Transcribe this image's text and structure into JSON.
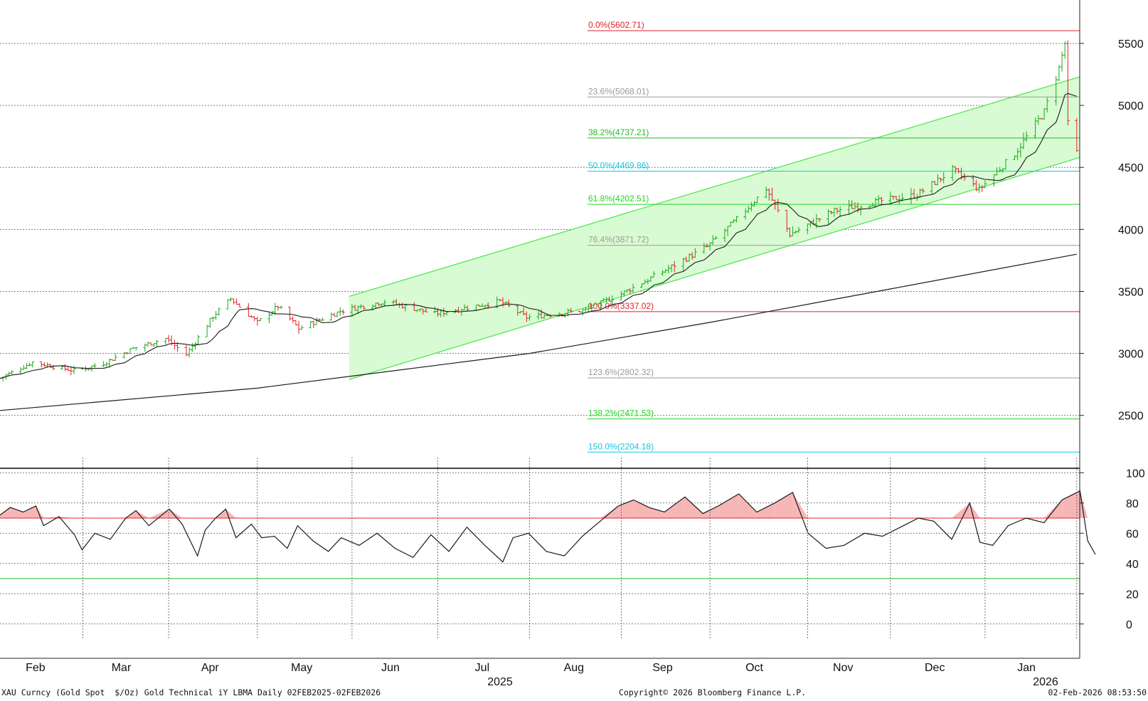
{
  "chart_data": [
    {
      "type": "candlestick",
      "title": "",
      "ylim": [
        2200,
        5850
      ],
      "yticks": [
        2500,
        3000,
        3500,
        4000,
        4500,
        5000,
        5500
      ],
      "grid": true,
      "x_months": [
        "Feb",
        "Mar",
        "Apr",
        "May",
        "Jun",
        "Jul",
        "Aug",
        "Sep",
        "Oct",
        "Nov",
        "Dec",
        "Jan"
      ],
      "x_years": [
        "2025",
        "2026"
      ],
      "price_path": [
        [
          "2025-02-03",
          2800
        ],
        [
          "2025-02-14",
          2930
        ],
        [
          "2025-02-28",
          2860
        ],
        [
          "2025-03-10",
          2920
        ],
        [
          "2025-03-20",
          3040
        ],
        [
          "2025-03-31",
          3120
        ],
        [
          "2025-04-07",
          2990
        ],
        [
          "2025-04-16",
          3300
        ],
        [
          "2025-04-22",
          3440
        ],
        [
          "2025-05-01",
          3250
        ],
        [
          "2025-05-08",
          3380
        ],
        [
          "2025-05-15",
          3200
        ],
        [
          "2025-05-29",
          3340
        ],
        [
          "2025-06-13",
          3420
        ],
        [
          "2025-06-30",
          3320
        ],
        [
          "2025-07-22",
          3420
        ],
        [
          "2025-07-31",
          3290
        ],
        [
          "2025-08-20",
          3350
        ],
        [
          "2025-09-01",
          3480
        ],
        [
          "2025-09-15",
          3660
        ],
        [
          "2025-09-30",
          3860
        ],
        [
          "2025-10-10",
          4080
        ],
        [
          "2025-10-20",
          4330
        ],
        [
          "2025-10-28",
          3960
        ],
        [
          "2025-11-12",
          4150
        ],
        [
          "2025-11-28",
          4230
        ],
        [
          "2025-12-10",
          4280
        ],
        [
          "2025-12-22",
          4480
        ],
        [
          "2025-12-31",
          4320
        ],
        [
          "2026-01-12",
          4610
        ],
        [
          "2026-01-22",
          4950
        ],
        [
          "2026-01-27",
          5300
        ],
        [
          "2026-01-29",
          5500
        ],
        [
          "2026-01-30",
          4850
        ],
        [
          "2026-02-02",
          4620
        ]
      ],
      "moving_average_long_path": [
        [
          "2025-02-03",
          2540
        ],
        [
          "2025-05-01",
          2720
        ],
        [
          "2025-08-01",
          3000
        ],
        [
          "2025-10-01",
          3250
        ],
        [
          "2025-12-01",
          3520
        ],
        [
          "2026-02-02",
          3800
        ]
      ],
      "trend_channel": {
        "start": "2025-06-01",
        "end": "2026-02-03",
        "upper": [
          3460,
          5230
        ],
        "lower": [
          2790,
          4580
        ]
      },
      "fibonacci_levels": [
        {
          "label": "0.0%(5602.71)",
          "value": 5602.71,
          "color": "#e0212b"
        },
        {
          "label": "23.6%(5068.01)",
          "value": 5068.01,
          "color": "#9a9a9a"
        },
        {
          "label": "38.2%(4737.21)",
          "value": 4737.21,
          "color": "#22b922"
        },
        {
          "label": "50.0%(4469.86)",
          "value": 4469.86,
          "color": "#19c6e0"
        },
        {
          "label": "61.8%(4202.51)",
          "value": 4202.51,
          "color": "#22d622"
        },
        {
          "label": "76.4%(3871.72)",
          "value": 3871.72,
          "color": "#9a9a9a"
        },
        {
          "label": "100.0%(3337.02)",
          "value": 3337.02,
          "color": "#e0212b"
        },
        {
          "label": "123.6%(2802.32)",
          "value": 2802.32,
          "color": "#9a9a9a"
        },
        {
          "label": "138.2%(2471.53)",
          "value": 2471.53,
          "color": "#22d622"
        },
        {
          "label": "150.0%(2204.18)",
          "value": 2204.18,
          "color": "#19c6e0"
        }
      ],
      "colors": {
        "up_bar": "#1aa81a",
        "down_bar": "#e0212b",
        "channel_fill": "#d9fbd3",
        "channel_line": "#55e655",
        "ma": "#1a1a1a"
      }
    },
    {
      "type": "line",
      "title": "",
      "ylim": [
        -10,
        110
      ],
      "yticks": [
        0,
        20,
        40,
        60,
        80,
        100
      ],
      "reference_lines": [
        {
          "value": 70,
          "color": "#e0212b"
        },
        {
          "value": 30,
          "color": "#22c022"
        }
      ],
      "series": [
        {
          "values": [
            [
              "2025-02-03",
              72
            ],
            [
              "2025-02-07",
              77
            ],
            [
              "2025-02-12",
              74
            ],
            [
              "2025-02-17",
              78
            ],
            [
              "2025-02-20",
              65
            ],
            [
              "2025-02-26",
              71
            ],
            [
              "2025-03-04",
              59
            ],
            [
              "2025-03-07",
              49
            ],
            [
              "2025-03-12",
              60
            ],
            [
              "2025-03-18",
              56
            ],
            [
              "2025-03-24",
              70
            ],
            [
              "2025-03-28",
              75
            ],
            [
              "2025-04-02",
              65
            ],
            [
              "2025-04-10",
              76
            ],
            [
              "2025-04-15",
              66
            ],
            [
              "2025-04-21",
              45
            ],
            [
              "2025-04-24",
              62
            ],
            [
              "2025-04-28",
              70
            ],
            [
              "2025-05-02",
              76
            ],
            [
              "2025-05-06",
              57
            ],
            [
              "2025-05-12",
              66
            ],
            [
              "2025-05-16",
              57
            ],
            [
              "2025-05-21",
              58
            ],
            [
              "2025-05-26",
              50
            ],
            [
              "2025-05-30",
              65
            ],
            [
              "2025-06-05",
              55
            ],
            [
              "2025-06-11",
              48
            ],
            [
              "2025-06-16",
              57
            ],
            [
              "2025-06-23",
              52
            ],
            [
              "2025-06-30",
              60
            ],
            [
              "2025-07-07",
              50
            ],
            [
              "2025-07-14",
              44
            ],
            [
              "2025-07-21",
              59
            ],
            [
              "2025-07-28",
              48
            ],
            [
              "2025-08-04",
              64
            ],
            [
              "2025-08-11",
              52
            ],
            [
              "2025-08-18",
              41
            ],
            [
              "2025-08-22",
              57
            ],
            [
              "2025-08-28",
              60
            ],
            [
              "2025-09-04",
              48
            ],
            [
              "2025-09-11",
              45
            ],
            [
              "2025-09-18",
              58
            ],
            [
              "2025-09-25",
              68
            ],
            [
              "2025-10-02",
              78
            ],
            [
              "2025-10-08",
              82
            ],
            [
              "2025-10-14",
              77
            ],
            [
              "2025-10-20",
              74
            ],
            [
              "2025-10-28",
              84
            ],
            [
              "2025-11-04",
              73
            ],
            [
              "2025-11-10",
              78
            ],
            [
              "2025-11-18",
              86
            ],
            [
              "2025-11-25",
              74
            ],
            [
              "2025-12-02",
              80
            ],
            [
              "2025-12-09",
              87
            ],
            [
              "2025-12-15",
              60
            ],
            [
              "2025-12-22",
              50
            ],
            [
              "2025-12-29",
              52
            ],
            [
              "2026-01-06",
              60
            ],
            [
              "2026-01-13",
              58
            ],
            [
              "2026-01-20",
              64
            ],
            [
              "2026-01-27",
              70
            ],
            [
              "2026-02-02",
              68
            ],
            [
              "2026-02-09",
              56
            ],
            [
              "2026-02-16",
              80
            ],
            [
              "2026-02-20",
              54
            ],
            [
              "2026-02-25",
              52
            ],
            [
              "2026-03-03",
              65
            ],
            [
              "2026-03-10",
              70
            ],
            [
              "2026-03-17",
              67
            ],
            [
              "2026-03-24",
              82
            ],
            [
              "2026-03-31",
              88
            ],
            [
              "2026-04-03",
              55
            ],
            [
              "2026-04-06",
              46
            ]
          ]
        }
      ]
    }
  ],
  "footer": {
    "left": "XAU Curncy (Gold Spot  $/Oz) Gold Technical iY LBMA Daily 02FEB2025-02FEB2026",
    "center": "Copyright© 2026 Bloomberg Finance L.P.",
    "right": "02-Feb-2026 08:53:50"
  }
}
